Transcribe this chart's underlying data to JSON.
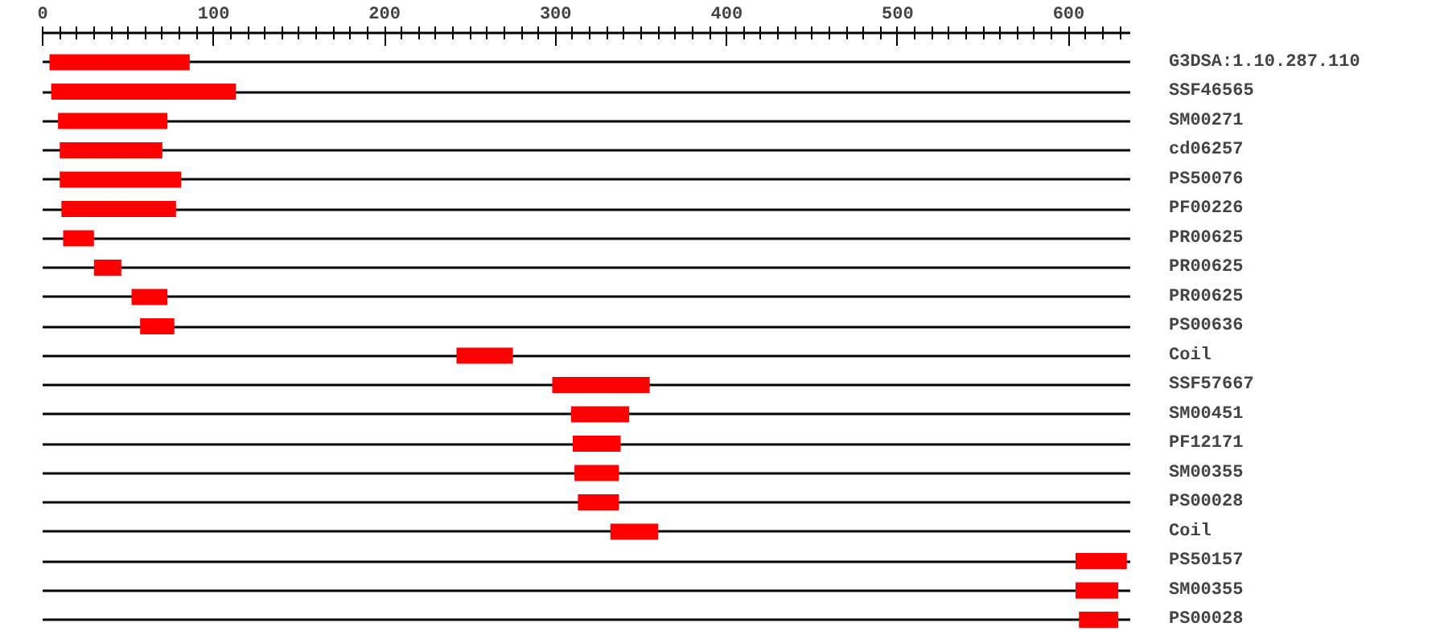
{
  "chart_data": {
    "type": "bar",
    "orientation": "horizontal",
    "grid": "y",
    "categories": [
      "G3DSA:1.10.287.110",
      "SSF46565",
      "SM00271",
      "cd06257",
      "PS50076",
      "PF00226",
      "PR00625",
      "PR00625",
      "PR00625",
      "PS00636",
      "Coil",
      "SSF57667",
      "SM00451",
      "PF12171",
      "SM00355",
      "PS00028",
      "Coil",
      "PS50157",
      "SM00355",
      "PS00028"
    ],
    "base": [
      4,
      5,
      9,
      10,
      10,
      11,
      12,
      30,
      52,
      57,
      242,
      298,
      309,
      310,
      311,
      313,
      332,
      604,
      604,
      606
    ],
    "values": [
      82,
      108,
      64,
      60,
      71,
      67,
      18,
      16,
      21,
      20,
      33,
      57,
      34,
      28,
      26,
      24,
      28,
      30,
      25,
      23
    ],
    "color": "#ff0000",
    "xlim": [
      0,
      636
    ],
    "xticks": [
      0,
      {
        "value": 10,
        "label": null
      },
      {
        "value": 20,
        "label": null
      },
      {
        "value": 30,
        "label": null
      },
      {
        "value": 40,
        "label": null
      },
      {
        "value": 50,
        "label": null
      },
      {
        "value": 60,
        "label": null
      },
      {
        "value": 70,
        "label": null
      },
      {
        "value": 80,
        "label": null
      },
      {
        "value": 90,
        "label": null
      },
      100,
      {
        "value": 110,
        "label": null
      },
      {
        "value": 120,
        "label": null
      },
      {
        "value": 130,
        "label": null
      },
      {
        "value": 140,
        "label": null
      },
      {
        "value": 150,
        "label": null
      },
      {
        "value": 160,
        "label": null
      },
      {
        "value": 170,
        "label": null
      },
      {
        "value": 180,
        "label": null
      },
      {
        "value": 190,
        "label": null
      },
      200,
      {
        "value": 210,
        "label": null
      },
      {
        "value": 220,
        "label": null
      },
      {
        "value": 230,
        "label": null
      },
      {
        "value": 240,
        "label": null
      },
      {
        "value": 250,
        "label": null
      },
      {
        "value": 260,
        "label": null
      },
      {
        "value": 270,
        "label": null
      },
      {
        "value": 280,
        "label": null
      },
      {
        "value": 290,
        "label": null
      },
      300,
      {
        "value": 310,
        "label": null
      },
      {
        "value": 320,
        "label": null
      },
      {
        "value": 330,
        "label": null
      },
      {
        "value": 340,
        "label": null
      },
      {
        "value": 350,
        "label": null
      },
      {
        "value": 360,
        "label": null
      },
      {
        "value": 370,
        "label": null
      },
      {
        "value": 380,
        "label": null
      },
      {
        "value": 390,
        "label": null
      },
      400,
      {
        "value": 410,
        "label": null
      },
      {
        "value": 420,
        "label": null
      },
      {
        "value": 430,
        "label": null
      },
      {
        "value": 440,
        "label": null
      },
      {
        "value": 450,
        "label": null
      },
      {
        "value": 460,
        "label": null
      },
      {
        "value": 470,
        "label": null
      },
      {
        "value": 480,
        "label": null
      },
      {
        "value": 490,
        "label": null
      },
      500,
      {
        "value": 510,
        "label": null
      },
      {
        "value": 520,
        "label": null
      },
      {
        "value": 530,
        "label": null
      },
      {
        "value": 540,
        "label": null
      },
      {
        "value": 550,
        "label": null
      },
      {
        "value": 560,
        "label": null
      },
      {
        "value": 570,
        "label": null
      },
      {
        "value": 580,
        "label": null
      },
      {
        "value": 590,
        "label": null
      },
      600,
      {
        "value": 610,
        "label": null
      },
      {
        "value": 620,
        "label": null
      },
      {
        "value": 630,
        "label": null
      }
    ]
  }
}
